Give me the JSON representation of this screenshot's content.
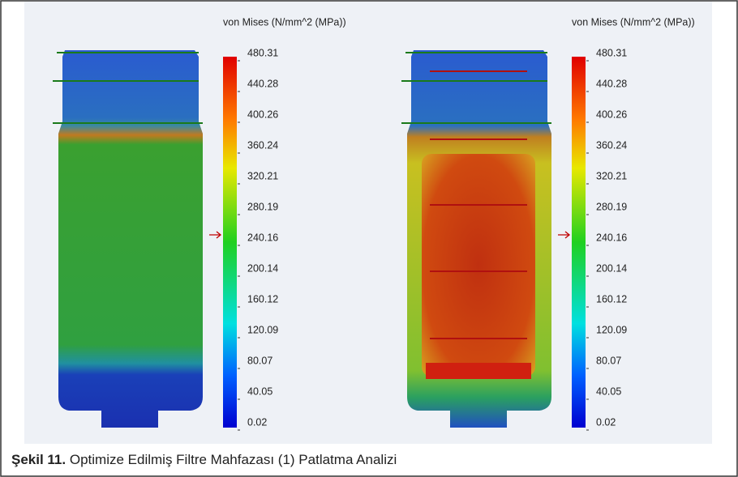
{
  "panels": [
    {
      "legend_title": "von Mises (N/mm^2 (MPa))",
      "ticks": [
        "480.31",
        "440.28",
        "400.26",
        "360.24",
        "320.21",
        "280.19",
        "240.16",
        "200.14",
        "160.12",
        "120.09",
        "80.07",
        "40.05",
        "0.02"
      ]
    },
    {
      "legend_title": "von Mises (N/mm^2 (MPa))",
      "ticks": [
        "480.31",
        "440.28",
        "400.26",
        "360.24",
        "320.21",
        "280.19",
        "240.16",
        "200.14",
        "160.12",
        "120.09",
        "80.07",
        "40.05",
        "0.02"
      ]
    }
  ],
  "caption": {
    "label": "Şekil 11.",
    "text": "Optimize Edilmiş Filtre Mahfazası (1) Patlatma Analizi"
  }
}
